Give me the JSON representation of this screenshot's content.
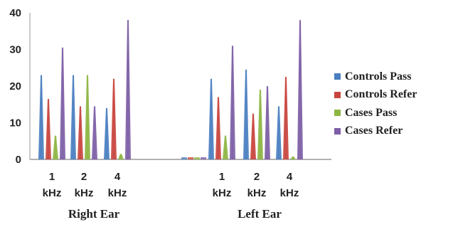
{
  "chart_data": {
    "type": "bar",
    "ylim": [
      0,
      40
    ],
    "y_ticks": [
      "0",
      "10",
      "20",
      "30",
      "40"
    ],
    "grid": false,
    "legend_placement": "right",
    "groups": [
      {
        "name": "Right Ear",
        "categories": [
          {
            "line1": "1",
            "line2": "kHz"
          },
          {
            "line1": "2",
            "line2": "kHz"
          },
          {
            "line1": "4",
            "line2": "kHz"
          }
        ]
      },
      {
        "name": "Left  Ear",
        "categories": [
          {
            "line1": "1",
            "line2": "kHz"
          },
          {
            "line1": "2",
            "line2": "kHz"
          },
          {
            "line1": "4",
            "line2": "kHz"
          }
        ]
      }
    ],
    "series": [
      {
        "name": "Controls Pass",
        "color": "#4a7fc1",
        "values": [
          23,
          23,
          14,
          22,
          24.5,
          14.5
        ]
      },
      {
        "name": "Controls Refer",
        "color": "#c9453f",
        "values": [
          16.5,
          14.5,
          22,
          17,
          12.5,
          22.5
        ]
      },
      {
        "name": "Cases Pass",
        "color": "#8db543",
        "values": [
          6.5,
          23,
          1.5,
          6.5,
          19,
          0.8
        ]
      },
      {
        "name": "Cases Refer",
        "color": "#7e5ea6",
        "values": [
          30.5,
          14.5,
          38,
          31,
          20,
          38
        ]
      }
    ]
  }
}
